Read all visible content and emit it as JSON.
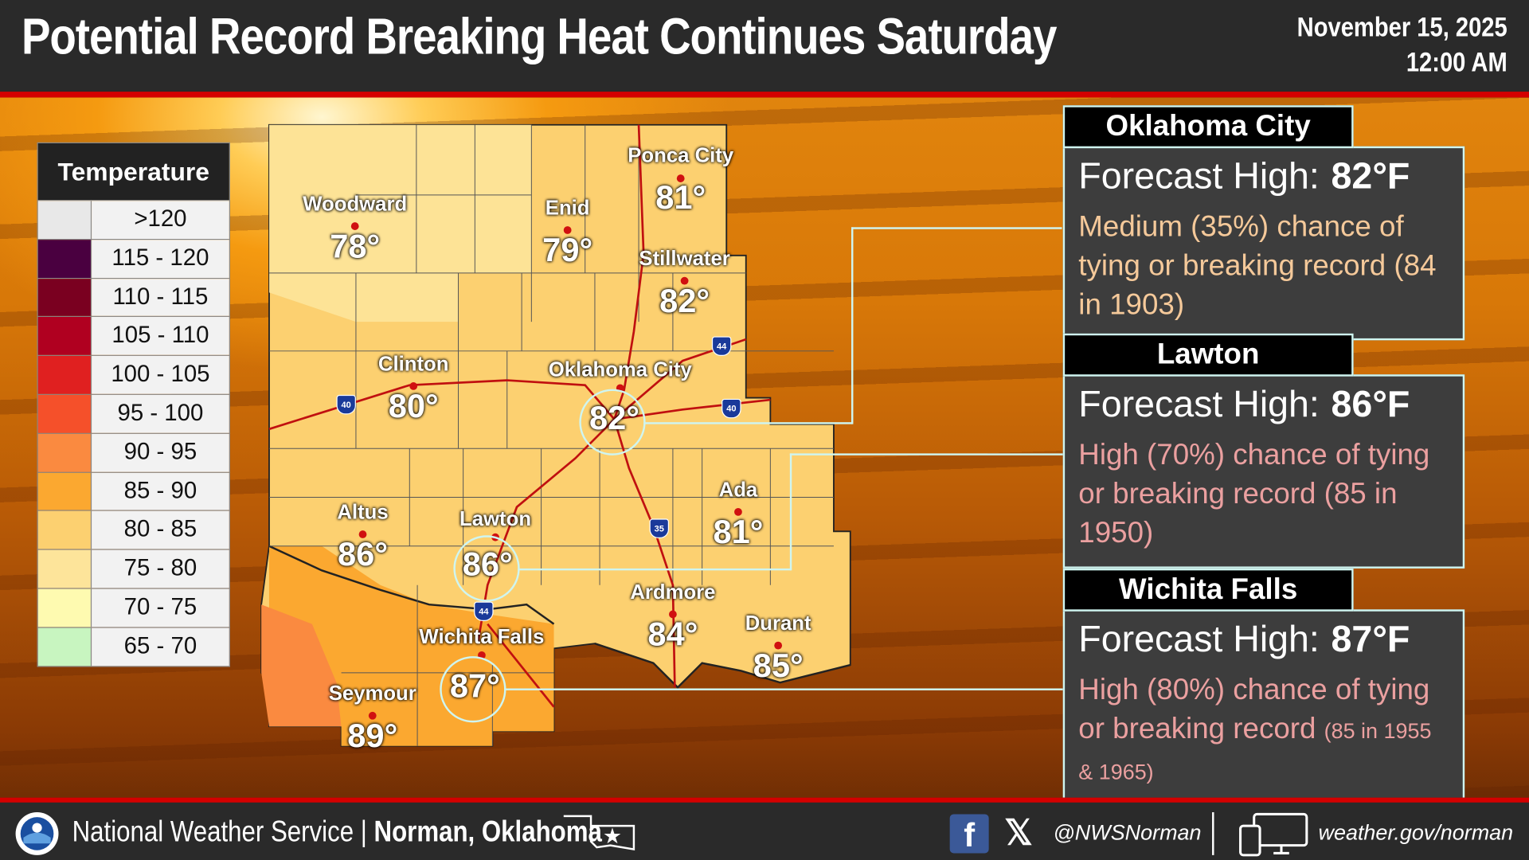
{
  "header": {
    "title": "Potential Record Breaking Heat Continues Saturday",
    "date": "November 15, 2025",
    "time": "12:00 AM"
  },
  "legend": {
    "title": "Temperature",
    "items": [
      {
        "label": ">120",
        "color": "#e8e8e8"
      },
      {
        "label": "115 - 120",
        "color": "#4a0040"
      },
      {
        "label": "110 - 115",
        "color": "#7a0020"
      },
      {
        "label": "105 - 110",
        "color": "#b00020"
      },
      {
        "label": "100 - 105",
        "color": "#e02020"
      },
      {
        "label": "95 - 100",
        "color": "#f5502a"
      },
      {
        "label": "90 - 95",
        "color": "#fa8a40"
      },
      {
        "label": "85 - 90",
        "color": "#fba830"
      },
      {
        "label": "80 - 85",
        "color": "#fcd070"
      },
      {
        "label": "75 - 80",
        "color": "#fde49a"
      },
      {
        "label": "70 - 75",
        "color": "#fefab0"
      },
      {
        "label": "65 - 70",
        "color": "#c8f5c0"
      }
    ]
  },
  "cities": [
    {
      "name": "Ponca City",
      "temp": "81°"
    },
    {
      "name": "Woodward",
      "temp": "78°"
    },
    {
      "name": "Enid",
      "temp": "79°"
    },
    {
      "name": "Stillwater",
      "temp": "82°"
    },
    {
      "name": "Clinton",
      "temp": "80°"
    },
    {
      "name": "Oklahoma City",
      "temp": "82°"
    },
    {
      "name": "Ada",
      "temp": "81°"
    },
    {
      "name": "Altus",
      "temp": "86°"
    },
    {
      "name": "Lawton",
      "temp": "86°"
    },
    {
      "name": "Ardmore",
      "temp": "84°"
    },
    {
      "name": "Durant",
      "temp": "85°"
    },
    {
      "name": "Wichita Falls",
      "temp": "87°"
    },
    {
      "name": "Seymour",
      "temp": "89°"
    }
  ],
  "highways": [
    "40",
    "44",
    "35"
  ],
  "cards": [
    {
      "city": "Oklahoma City",
      "label": "Forecast High:",
      "value": "82°F",
      "desc": "Medium (35%) chance of tying or breaking record (84 in 1903)",
      "color": "#f5c99a"
    },
    {
      "city": "Lawton",
      "label": "Forecast High:",
      "value": "86°F",
      "desc": "High (70%) chance of tying or breaking record (85 in 1950)",
      "color": "#eba0a0"
    },
    {
      "city": "Wichita Falls",
      "label": "Forecast High:",
      "value": "87°F",
      "desc": "High (80%) chance of tying or breaking record",
      "desc_small": "(85 in 1955 & 1965)",
      "color": "#eba0a0"
    }
  ],
  "footer": {
    "org": "National Weather Service | ",
    "office": "Norman, Oklahoma",
    "handle": "@NWSNorman",
    "website": "weather.gov/norman"
  }
}
